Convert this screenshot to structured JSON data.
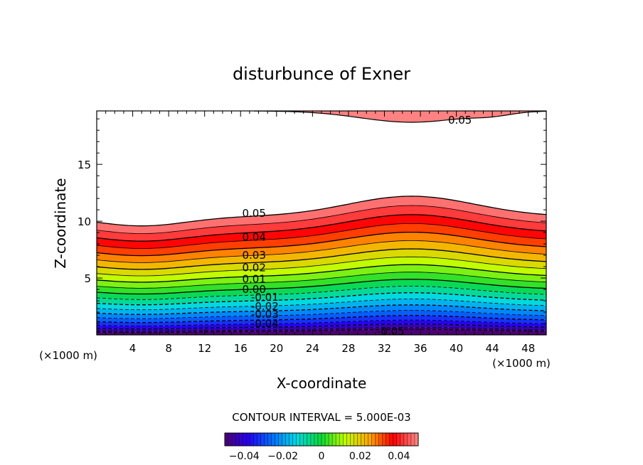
{
  "chart_data": {
    "type": "contour",
    "title": "disturbunce of Exner",
    "xlabel": "X-coordinate",
    "ylabel": "Z-coordinate",
    "x_unit_left": "(×1000 m)",
    "x_unit_right": "(×1000 m)",
    "xlim": [
      0,
      50
    ],
    "ylim": [
      0,
      19.7
    ],
    "xticks": [
      4,
      8,
      12,
      16,
      20,
      24,
      28,
      32,
      36,
      40,
      44,
      48
    ],
    "xtick_labels": [
      "4",
      "8",
      "12",
      "16",
      "20",
      "24",
      "28",
      "32",
      "36",
      "40",
      "44",
      "48"
    ],
    "yticks": [
      5,
      10,
      15
    ],
    "ytick_labels": [
      "5",
      "10",
      "15"
    ],
    "contour_interval_text": "CONTOUR INTERVAL = 5.000E-03",
    "contour_interval": 0.005,
    "levels_range": [
      -0.05,
      0.05
    ],
    "contour_labels": [
      {
        "text": "0.05",
        "x": 17.5,
        "y": 10.7
      },
      {
        "text": "0.04",
        "x": 17.5,
        "y": 8.6
      },
      {
        "text": "0.03",
        "x": 17.5,
        "y": 7.0
      },
      {
        "text": "0.02",
        "x": 17.5,
        "y": 5.9
      },
      {
        "text": "0.01",
        "x": 17.5,
        "y": 4.9
      },
      {
        "text": "0.00",
        "x": 17.5,
        "y": 4.0
      },
      {
        "text": "-0.01",
        "x": 18.7,
        "y": 3.3
      },
      {
        "text": "-0.02",
        "x": 18.7,
        "y": 2.5
      },
      {
        "text": "-0.03",
        "x": 18.7,
        "y": 1.8
      },
      {
        "text": "-0.04",
        "x": 18.7,
        "y": 1.0
      },
      {
        "text": "-0.05",
        "x": 32.7,
        "y": 0.3
      },
      {
        "text": "0.05",
        "x": 40.4,
        "y": 18.9
      }
    ],
    "colorbar": {
      "range": [
        -0.05,
        0.05
      ],
      "tick_values": [
        -0.04,
        -0.02,
        0,
        0.02,
        0.04
      ],
      "tick_labels": [
        "−0.04",
        "−0.02",
        "0",
        "0.02",
        "0.04"
      ]
    }
  }
}
